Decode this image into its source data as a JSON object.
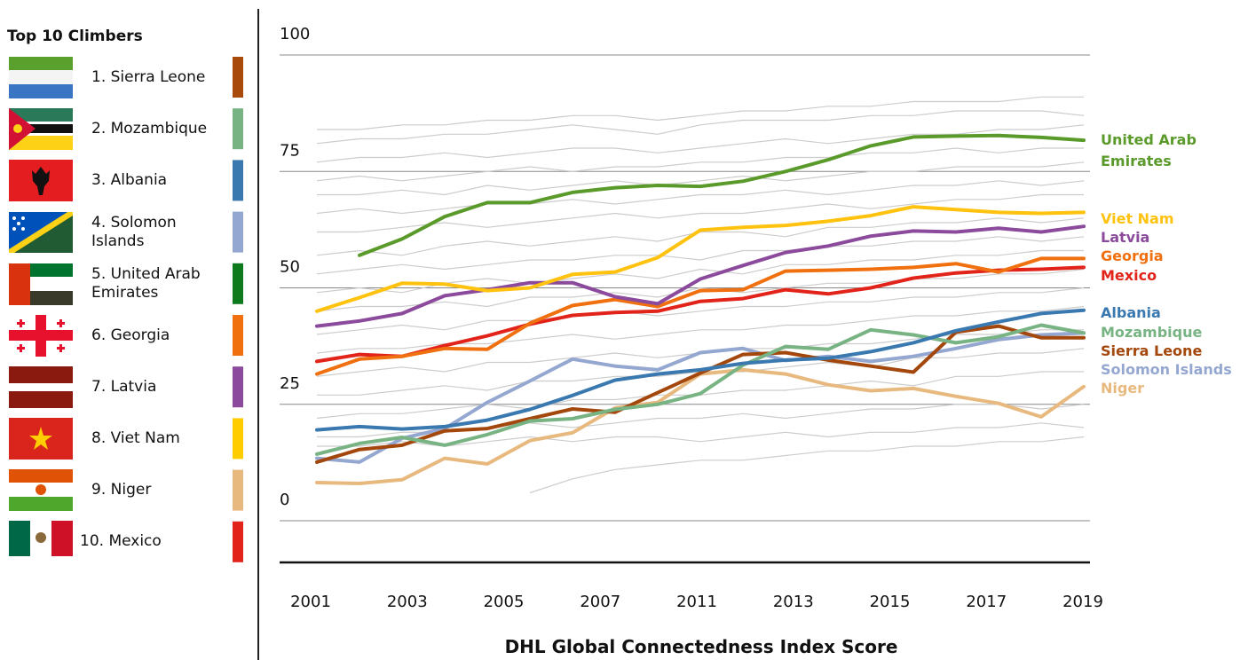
{
  "chart_data": {
    "type": "line",
    "legend_title": "Top 10 Climbers",
    "x_title": "DHL Global Connectedness Index Score",
    "x_labels": [
      "2001",
      "2003",
      "2005",
      "2007",
      "2011",
      "2013",
      "2015",
      "2017",
      "2019"
    ],
    "ylim": [
      0,
      100
    ],
    "yticks": [
      0,
      25,
      50,
      75,
      100
    ],
    "grid": true,
    "legend": [
      {
        "label": "1. Sierra Leone",
        "color": "#a84a0a"
      },
      {
        "label": "2. Mozambique",
        "color": "#78b383"
      },
      {
        "label": "3. Albania",
        "color": "#3a78b0"
      },
      {
        "label": "4. Solomon Islands",
        "color": "#94a7d0"
      },
      {
        "label": "5. United Arab Emirates",
        "color": "#0e7a1e"
      },
      {
        "label": "6. Georgia",
        "color": "#f07010"
      },
      {
        "label": "7. Latvia",
        "color": "#8b4a9c"
      },
      {
        "label": "8. Viet Nam",
        "color": "#ffcc00"
      },
      {
        "label": "9. Niger",
        "color": "#e8b97e"
      },
      {
        "label": "10. Mexico",
        "color": "#e2231a"
      }
    ],
    "background_color": "#cccccc",
    "background_series": [
      [
        84,
        84,
        85,
        85,
        86,
        86,
        87,
        87,
        86,
        87,
        88,
        88,
        89,
        89,
        90,
        90,
        90,
        91,
        91
      ],
      [
        81,
        82,
        82,
        83,
        83,
        84,
        85,
        84,
        83,
        85,
        86,
        86,
        86,
        87,
        87,
        88,
        88,
        88,
        87
      ],
      [
        77,
        78,
        78,
        79,
        78,
        79,
        80,
        80,
        79,
        80,
        81,
        82,
        81,
        82,
        83,
        83,
        84,
        84,
        85
      ],
      [
        73,
        74,
        73,
        74,
        75,
        76,
        75,
        76,
        76,
        77,
        77,
        78,
        78,
        79,
        79,
        80,
        79,
        80,
        80
      ],
      [
        70,
        70,
        71,
        70,
        72,
        71,
        72,
        73,
        72,
        73,
        74,
        73,
        74,
        75,
        75,
        76,
        76,
        76,
        77
      ],
      [
        66,
        67,
        66,
        67,
        68,
        68,
        69,
        68,
        69,
        70,
        70,
        71,
        70,
        71,
        72,
        72,
        73,
        72,
        73
      ],
      [
        62,
        62,
        63,
        64,
        63,
        64,
        65,
        66,
        65,
        66,
        66,
        67,
        68,
        67,
        68,
        69,
        69,
        70,
        70
      ],
      [
        57,
        58,
        57,
        59,
        60,
        59,
        60,
        61,
        60,
        62,
        62,
        61,
        63,
        63,
        64,
        64,
        65,
        64,
        65
      ],
      [
        53,
        54,
        55,
        54,
        55,
        56,
        56,
        57,
        57,
        56,
        58,
        58,
        59,
        59,
        60,
        60,
        61,
        60,
        61
      ],
      [
        49,
        50,
        49,
        51,
        52,
        51,
        52,
        53,
        52,
        54,
        53,
        55,
        55,
        56,
        56,
        57,
        57,
        58,
        58
      ],
      [
        45,
        46,
        46,
        47,
        46,
        48,
        48,
        49,
        48,
        50,
        49,
        50,
        51,
        51,
        52,
        52,
        53,
        53,
        54
      ],
      [
        40,
        41,
        42,
        41,
        43,
        43,
        44,
        45,
        44,
        45,
        46,
        46,
        47,
        47,
        48,
        48,
        49,
        49,
        50
      ],
      [
        36,
        37,
        37,
        38,
        38,
        39,
        40,
        39,
        40,
        41,
        41,
        42,
        42,
        43,
        44,
        44,
        45,
        45,
        46
      ],
      [
        31,
        32,
        33,
        32,
        34,
        34,
        35,
        36,
        35,
        36,
        37,
        37,
        38,
        38,
        39,
        40,
        40,
        41,
        41
      ],
      [
        27,
        27,
        28,
        29,
        28,
        30,
        30,
        31,
        31,
        32,
        32,
        33,
        34,
        33,
        35,
        35,
        36,
        36,
        37
      ],
      [
        22,
        23,
        23,
        24,
        25,
        24,
        26,
        26,
        27,
        27,
        28,
        28,
        29,
        30,
        29,
        31,
        31,
        32,
        32
      ],
      [
        18,
        18,
        19,
        19,
        20,
        21,
        20,
        21,
        22,
        22,
        23,
        22,
        23,
        24,
        24,
        25,
        25,
        24,
        25
      ],
      [
        null,
        null,
        null,
        null,
        null,
        6,
        9,
        11,
        12,
        13,
        13,
        14,
        15,
        15,
        16,
        16,
        17,
        17,
        18
      ],
      [
        16,
        16,
        17,
        16,
        17,
        18,
        17,
        18,
        18,
        17,
        18,
        19,
        18,
        19,
        19,
        20,
        20,
        21,
        20
      ]
    ],
    "series": [
      {
        "name": "United Arab Emirates",
        "color": "#5a9a2a",
        "values": [
          null,
          57,
          60.5,
          65.3,
          68.3,
          68.3,
          70.5,
          71.5,
          72,
          71.8,
          72.9,
          75,
          77.5,
          80.5,
          82.4,
          82.6,
          82.7,
          82.3,
          81.7
        ]
      },
      {
        "name": "Viet Nam",
        "color": "#ffc20e",
        "values": [
          45,
          47.9,
          51,
          50.8,
          49.4,
          50,
          52.9,
          53.4,
          56.5,
          62.4,
          63,
          63.4,
          64.3,
          65.5,
          67.4,
          66.8,
          66.2,
          66,
          66.2
        ]
      },
      {
        "name": "Latvia",
        "color": "#8b4a9c",
        "values": [
          41.8,
          42.9,
          44.5,
          48.3,
          49.6,
          51.1,
          51.1,
          48.1,
          46.6,
          51.9,
          54.8,
          57.6,
          59,
          61.1,
          62.2,
          62,
          62.8,
          62,
          63.2
        ]
      },
      {
        "name": "Georgia",
        "color": "#f07010",
        "values": [
          31.5,
          34.7,
          35.3,
          37,
          36.8,
          42.4,
          46.2,
          47.5,
          46,
          49.4,
          49.6,
          53.6,
          53.8,
          54,
          54.4,
          55.2,
          53.4,
          56.3,
          56.3
        ]
      },
      {
        "name": "Mexico",
        "color": "#e2231a",
        "values": [
          34.2,
          35.7,
          35.3,
          37.6,
          39.7,
          42.2,
          44.1,
          44.7,
          45,
          47.1,
          47.7,
          49.6,
          48.7,
          50,
          52.1,
          53.2,
          53.8,
          54,
          54.4
        ]
      },
      {
        "name": "Albania",
        "color": "#3a78b0",
        "values": [
          19.5,
          20.2,
          19.7,
          20.2,
          21.6,
          23.9,
          26.9,
          30.2,
          31.5,
          32.4,
          33.8,
          34.5,
          34.9,
          36.3,
          38.2,
          40.8,
          42.7,
          44.5,
          45.2
        ]
      },
      {
        "name": "Mozambique",
        "color": "#78b383",
        "values": [
          14.3,
          16.6,
          17.9,
          16.2,
          18.5,
          21.4,
          21.9,
          23.9,
          25,
          27.3,
          33.4,
          37.4,
          36.8,
          41,
          39.9,
          38.2,
          39.5,
          42,
          40.3
        ]
      },
      {
        "name": "Sierra Leone",
        "color": "#a3470c",
        "values": [
          12.6,
          15.3,
          16.2,
          19.3,
          19.8,
          21.9,
          24,
          23.3,
          27.5,
          31.7,
          35.7,
          36.1,
          34.5,
          33.2,
          31.9,
          40.5,
          41.8,
          39.3,
          39.3
        ]
      },
      {
        "name": "Solomon Islands",
        "color": "#94a7d0",
        "values": [
          13.4,
          12.6,
          17.7,
          19.8,
          25.4,
          30,
          34.7,
          33.2,
          32.4,
          36.1,
          37,
          34.4,
          35.3,
          34.2,
          35.3,
          37,
          38.9,
          39.9,
          40.3
        ]
      },
      {
        "name": "Niger",
        "color": "#e8b97e",
        "values": [
          8.2,
          8,
          8.8,
          13.4,
          12.2,
          17.2,
          18.9,
          24.2,
          25.4,
          31.5,
          32.4,
          31.5,
          29.2,
          27.9,
          28.4,
          26.7,
          25.2,
          22.3,
          28.8
        ]
      }
    ]
  }
}
